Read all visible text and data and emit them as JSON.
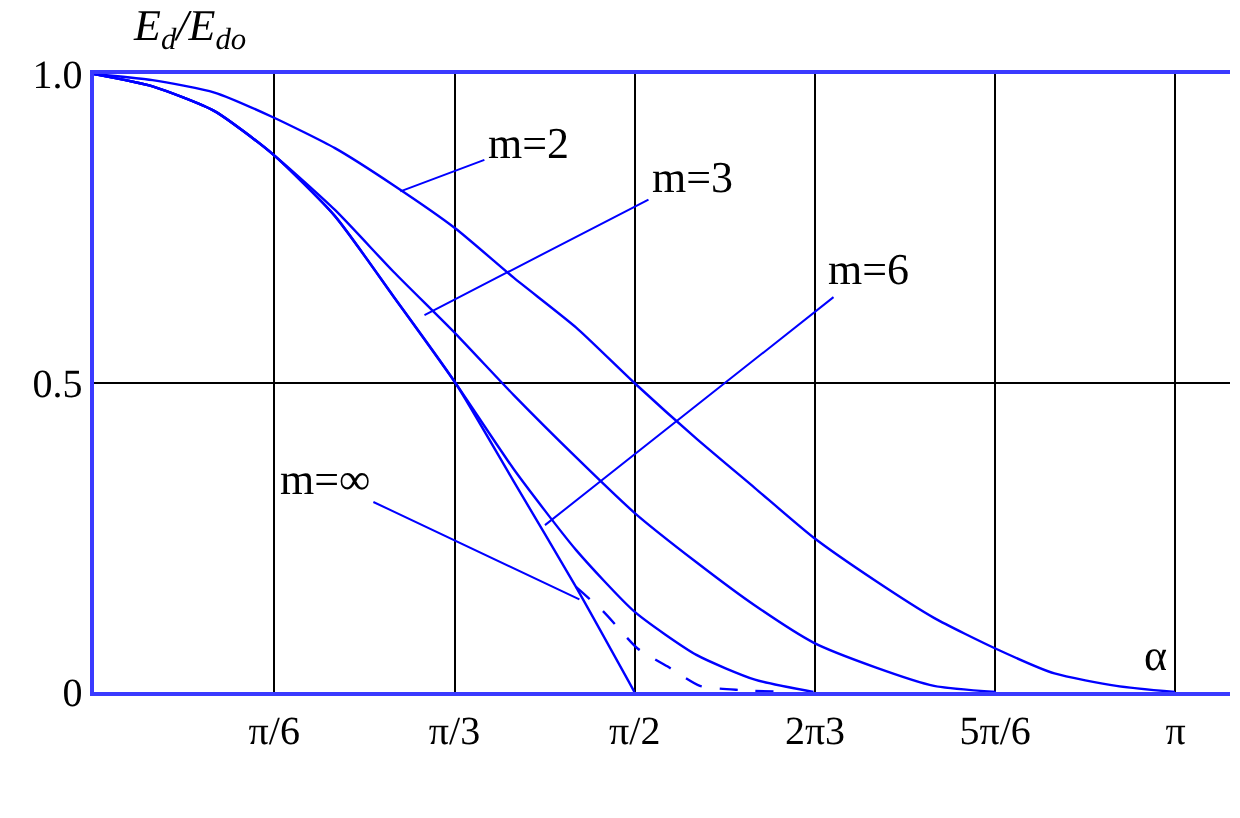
{
  "chart_data": {
    "type": "line",
    "ylabel": "E$_{d}$/E$_{do}$",
    "xlabel": "α",
    "xlim": [
      0,
      3.3
    ],
    "ylim": [
      0,
      1
    ],
    "xticks": [
      {
        "value": 0.5236,
        "label": "π/6"
      },
      {
        "value": 1.0472,
        "label": "π/3"
      },
      {
        "value": 1.5708,
        "label": "π/2"
      },
      {
        "value": 2.0944,
        "label": "2π3"
      },
      {
        "value": 2.618,
        "label": "5π/6"
      },
      {
        "value": 3.1416,
        "label": "π"
      }
    ],
    "yticks": [
      0,
      0.5,
      {
        "value": 1,
        "label": "1.0"
      }
    ],
    "grid": true,
    "series": [
      {
        "color": "#0000ff",
        "x": [
          0,
          0.17,
          0.35,
          0.52,
          0.7,
          0.87,
          1.05,
          1.22,
          1.4,
          1.57,
          1.75,
          1.92,
          2.09,
          2.27,
          2.44,
          2.62,
          2.79,
          2.97,
          3.14
        ],
        "values": [
          1,
          0.99,
          0.97,
          0.93,
          0.88,
          0.82,
          0.75,
          0.67,
          0.59,
          0.5,
          0.41,
          0.33,
          0.25,
          0.18,
          0.12,
          0.07,
          0.03,
          0.01,
          0
        ]
      },
      {
        "color": "#0000ff",
        "x": [
          0,
          0.17,
          0.35,
          0.52,
          0.7,
          0.87,
          1.05,
          1.22,
          1.4,
          1.57,
          1.75,
          1.92,
          2.09,
          2.27,
          2.44,
          2.62
        ],
        "values": [
          1,
          0.98,
          0.94,
          0.87,
          0.78,
          0.68,
          0.58,
          0.48,
          0.38,
          0.29,
          0.21,
          0.14,
          0.08,
          0.04,
          0.01,
          0
        ]
      },
      {
        "color": "#0000ff",
        "x": [
          0,
          0.17,
          0.35,
          0.52,
          0.7,
          0.87,
          1.05,
          1.22,
          1.4,
          1.57,
          1.75,
          1.92,
          2.09
        ],
        "values": [
          1,
          0.98,
          0.94,
          0.87,
          0.77,
          0.64,
          0.5,
          0.36,
          0.23,
          0.13,
          0.06,
          0.02,
          0
        ]
      },
      {
        "color": "#0000ff",
        "x": [
          0,
          0.17,
          0.35,
          0.52,
          0.7,
          0.87,
          1.05,
          1.22,
          1.4,
          1.57
        ],
        "values": [
          1,
          0.98,
          0.94,
          0.87,
          0.77,
          0.64,
          0.5,
          0.34,
          0.17,
          0
        ]
      },
      {
        "color": "#0000ff",
        "line_style": "dashed",
        "x": [
          1.4,
          1.48,
          1.58,
          1.67,
          1.76,
          1.88,
          2.02
        ],
        "values": [
          0.17,
          0.13,
          0.07,
          0.04,
          0.01,
          0.003,
          0
        ]
      }
    ],
    "annotations": [
      {
        "text": "m=2",
        "x": 0.89,
        "y": 0.81
      },
      {
        "text": "m=3",
        "x": 0.96,
        "y": 0.61
      },
      {
        "text": "m=6",
        "x": 1.31,
        "y": 0.27
      },
      {
        "text": "m=∞",
        "x": 1.41,
        "y": 0.15
      }
    ]
  }
}
